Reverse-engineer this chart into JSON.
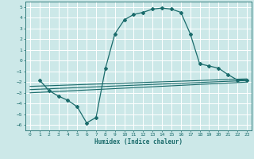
{
  "xlabel": "Humidex (Indice chaleur)",
  "bg_color": "#cce8e8",
  "grid_color": "#ffffff",
  "line_color": "#1a6b6b",
  "xlim": [
    -0.5,
    23.5
  ],
  "ylim": [
    -6.5,
    5.5
  ],
  "xticks": [
    0,
    1,
    2,
    3,
    4,
    5,
    6,
    7,
    8,
    9,
    10,
    11,
    12,
    13,
    14,
    15,
    16,
    17,
    18,
    19,
    20,
    21,
    22,
    23
  ],
  "yticks": [
    -6,
    -5,
    -4,
    -3,
    -2,
    -1,
    0,
    1,
    2,
    3,
    4,
    5
  ],
  "main_x": [
    1,
    2,
    3,
    4,
    5,
    6,
    7,
    8,
    9,
    10,
    11,
    12,
    13,
    14,
    15,
    16,
    17,
    18,
    19,
    20,
    21,
    22,
    23
  ],
  "main_y": [
    -1.8,
    -2.8,
    -3.3,
    -3.7,
    -4.3,
    -5.8,
    -5.3,
    -0.7,
    2.5,
    3.8,
    4.3,
    4.5,
    4.8,
    4.9,
    4.8,
    4.5,
    2.5,
    -0.3,
    -0.5,
    -0.7,
    -1.3,
    -1.8,
    -1.8
  ],
  "line1_x": [
    0,
    23
  ],
  "line1_y": [
    -2.4,
    -1.7
  ],
  "line2_x": [
    0,
    23
  ],
  "line2_y": [
    -2.7,
    -1.85
  ],
  "line3_x": [
    0,
    23
  ],
  "line3_y": [
    -3.0,
    -2.0
  ]
}
